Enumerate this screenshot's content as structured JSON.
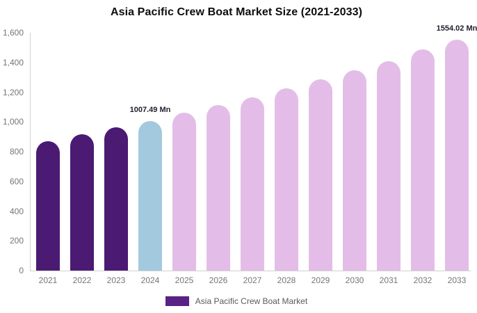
{
  "chart_data": {
    "type": "bar",
    "title": "Asia Pacific Crew Boat Market Size (2021-2033)",
    "unit": "Mn",
    "categories": [
      "2021",
      "2022",
      "2023",
      "2024",
      "2025",
      "2026",
      "2027",
      "2028",
      "2029",
      "2030",
      "2031",
      "2032",
      "2033"
    ],
    "values": [
      872,
      917,
      964,
      1007.49,
      1060,
      1112,
      1165,
      1226,
      1285,
      1346,
      1408,
      1486,
      1554.02
    ],
    "color_roles": [
      "historical",
      "historical",
      "historical",
      "base_year",
      "forecast",
      "forecast",
      "forecast",
      "forecast",
      "forecast",
      "forecast",
      "forecast",
      "forecast",
      "forecast"
    ],
    "colors": {
      "historical": "#4b1a73",
      "base_year": "#a3c9de",
      "forecast": "#e3bde7"
    },
    "ylim": [
      0,
      1600
    ],
    "yticks": [
      "0",
      "200",
      "400",
      "600",
      "800",
      "1,000",
      "1,200",
      "1,400",
      "1,600"
    ],
    "grid": false,
    "annotations": [
      {
        "category": "2024",
        "label": "1007.49 Mn"
      },
      {
        "category": "2033",
        "label": "1554.02 Mn"
      }
    ],
    "legend_position": "bottom",
    "legend": [
      {
        "label": "Asia Pacific Crew Boat Market",
        "color": "#5a2287"
      }
    ],
    "axis_color": "#d0d0d0"
  }
}
